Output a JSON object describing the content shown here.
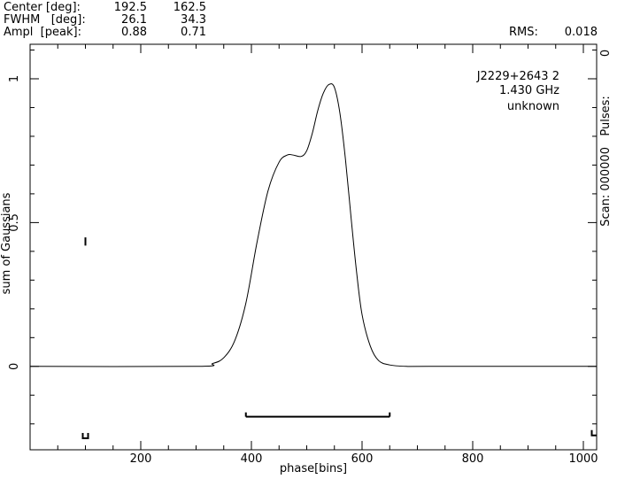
{
  "header": {
    "rows": [
      {
        "label": "Center [deg]:",
        "v1": "192.5",
        "v2": "162.5"
      },
      {
        "label": "FWHM   [deg]:",
        "v1": "26.1",
        "v2": "34.3"
      },
      {
        "label": "Ampl  [peak]:",
        "v1": "0.88",
        "v2": "0.71"
      }
    ],
    "rms_label": "RMS:",
    "rms_value": "0.018"
  },
  "annotation": {
    "source": "J2229+2643 2",
    "frequency": "1.430 GHz",
    "note": "unknown"
  },
  "right_side": {
    "top_value": "0",
    "text": "Scan: 000000   Pulses:"
  },
  "chart_data": {
    "type": "line",
    "title": "",
    "xlabel": "phase[bins]",
    "ylabel": "sum of Gaussians",
    "xlim": [
      0,
      1024
    ],
    "ylim": [
      -0.29,
      1.12
    ],
    "x_ticks": [
      200,
      400,
      600,
      800,
      1000
    ],
    "y_ticks": [
      0,
      0.5,
      1
    ],
    "x_tick_labels": [
      "200",
      "400",
      "600",
      "800",
      "1000"
    ],
    "y_tick_labels": [
      "0",
      "0.5",
      "1"
    ],
    "grid": false,
    "series": [
      {
        "x": [
          0,
          300,
          330,
          350,
          370,
          390,
          410,
          430,
          450,
          465,
          475,
          490,
          500,
          510,
          520,
          530,
          540,
          550,
          560,
          570,
          580,
          590,
          600,
          615,
          630,
          650,
          680,
          720,
          1024
        ],
        "y": [
          0,
          0,
          0.01,
          0.03,
          0.09,
          0.22,
          0.43,
          0.61,
          0.71,
          0.735,
          0.735,
          0.73,
          0.75,
          0.81,
          0.89,
          0.95,
          0.98,
          0.97,
          0.88,
          0.72,
          0.52,
          0.33,
          0.18,
          0.07,
          0.02,
          0.005,
          0,
          0,
          0
        ]
      }
    ],
    "markers": {
      "on_window": [
        390,
        650
      ],
      "off_marker_x": [
        100,
        1020
      ]
    }
  }
}
